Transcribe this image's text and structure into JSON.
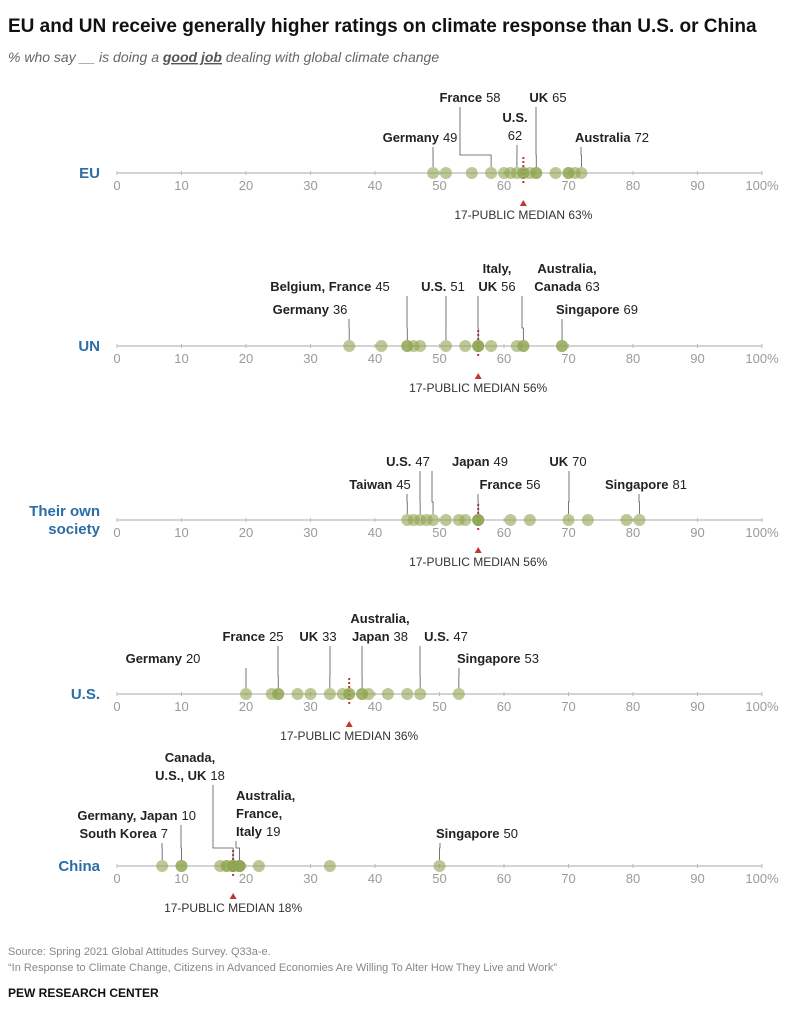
{
  "chart_data": {
    "type": "dot",
    "title": "EU and UN receive generally higher ratings on climate response than U.S. or China",
    "subtitle": [
      "% who say __ is doing a ",
      "good job",
      " dealing with global climate change"
    ],
    "xlim": [
      0,
      100
    ],
    "xticks": [
      0,
      10,
      20,
      30,
      40,
      50,
      60,
      70,
      80,
      90,
      {
        "value": 100,
        "label": "100%"
      }
    ],
    "dot_color": "#8fa552",
    "median_color": "#c0392b",
    "label_color": "#2b6ea6",
    "panels": [
      {
        "label": [
          "EU"
        ],
        "values": [
          49,
          51,
          55,
          58,
          60,
          61,
          62,
          63,
          63,
          64,
          65,
          65,
          68,
          70,
          70,
          71,
          72
        ],
        "annotations": [
          {
            "lines": [
              "Germany"
            ],
            "value": 49
          },
          {
            "lines": [
              "France"
            ],
            "value": 58
          },
          {
            "lines": [
              "U.S."
            ],
            "value": 62
          },
          {
            "lines": [
              "UK"
            ],
            "value": 65
          },
          {
            "lines": [
              "Australia"
            ],
            "value": 72
          }
        ],
        "median": {
          "value": 63,
          "label": "17-PUBLIC MEDIAN 63%"
        }
      },
      {
        "label": [
          "UN"
        ],
        "values": [
          36,
          41,
          45,
          45,
          46,
          47,
          51,
          54,
          56,
          56,
          56,
          58,
          62,
          63,
          63,
          69,
          69
        ],
        "annotations": [
          {
            "lines": [
              "Germany"
            ],
            "value": 36
          },
          {
            "lines": [
              "Belgium, France"
            ],
            "value": 45
          },
          {
            "lines": [
              "U.S."
            ],
            "value": 51
          },
          {
            "lines": [
              "Italy,",
              "UK"
            ],
            "value": 56
          },
          {
            "lines": [
              "Australia,",
              "Canada"
            ],
            "value": 63
          },
          {
            "lines": [
              "Singapore"
            ],
            "value": 69
          }
        ],
        "median": {
          "value": 56,
          "label": "17-PUBLIC MEDIAN 56%"
        }
      },
      {
        "label": [
          "Their own",
          "society"
        ],
        "values": [
          45,
          46,
          47,
          48,
          49,
          51,
          53,
          54,
          56,
          56,
          56,
          61,
          64,
          70,
          73,
          79,
          81
        ],
        "annotations": [
          {
            "lines": [
              "Taiwan"
            ],
            "value": 45
          },
          {
            "lines": [
              "U.S."
            ],
            "value": 47
          },
          {
            "lines": [
              "Japan"
            ],
            "value": 49
          },
          {
            "lines": [
              "France"
            ],
            "value": 56
          },
          {
            "lines": [
              "UK"
            ],
            "value": 70
          },
          {
            "lines": [
              "Singapore"
            ],
            "value": 81
          }
        ],
        "median": {
          "value": 56,
          "label": "17-PUBLIC MEDIAN 56%"
        }
      },
      {
        "label": [
          "U.S."
        ],
        "values": [
          20,
          24,
          25,
          25,
          28,
          30,
          33,
          35,
          36,
          36,
          38,
          38,
          39,
          42,
          45,
          47,
          53
        ],
        "annotations": [
          {
            "lines": [
              "Germany"
            ],
            "value": 20
          },
          {
            "lines": [
              "France"
            ],
            "value": 25
          },
          {
            "lines": [
              "UK"
            ],
            "value": 33
          },
          {
            "lines": [
              "Australia,",
              "Japan"
            ],
            "value": 38
          },
          {
            "lines": [
              "U.S."
            ],
            "value": 47
          },
          {
            "lines": [
              "Singapore"
            ],
            "value": 53
          }
        ],
        "median": {
          "value": 36,
          "label": "17-PUBLIC MEDIAN 36%"
        }
      },
      {
        "label": [
          "China"
        ],
        "values": [
          7,
          10,
          10,
          16,
          17,
          17,
          18,
          18,
          18,
          18,
          19,
          19,
          19,
          19,
          22,
          33,
          50
        ],
        "annotations": [
          {
            "lines": [
              "Germany, Japan"
            ],
            "value": 10
          },
          {
            "lines": [
              "South Korea"
            ],
            "value": 7
          },
          {
            "lines": [
              "Canada,",
              "U.S., UK"
            ],
            "value": 18
          },
          {
            "lines": [
              "Australia,",
              "France,",
              "Italy"
            ],
            "value": 19
          },
          {
            "lines": [
              "Singapore"
            ],
            "value": 50
          }
        ],
        "median": {
          "value": 18,
          "label": "17-PUBLIC MEDIAN 18%"
        }
      }
    ]
  },
  "source": "Source: Spring 2021 Global Attitudes Survey. Q33a-e.",
  "report": "“In Response to Climate Change, Citizens in Advanced Economies Are Willing To Alter How They Live and Work”",
  "brand": "PEW RESEARCH CENTER"
}
